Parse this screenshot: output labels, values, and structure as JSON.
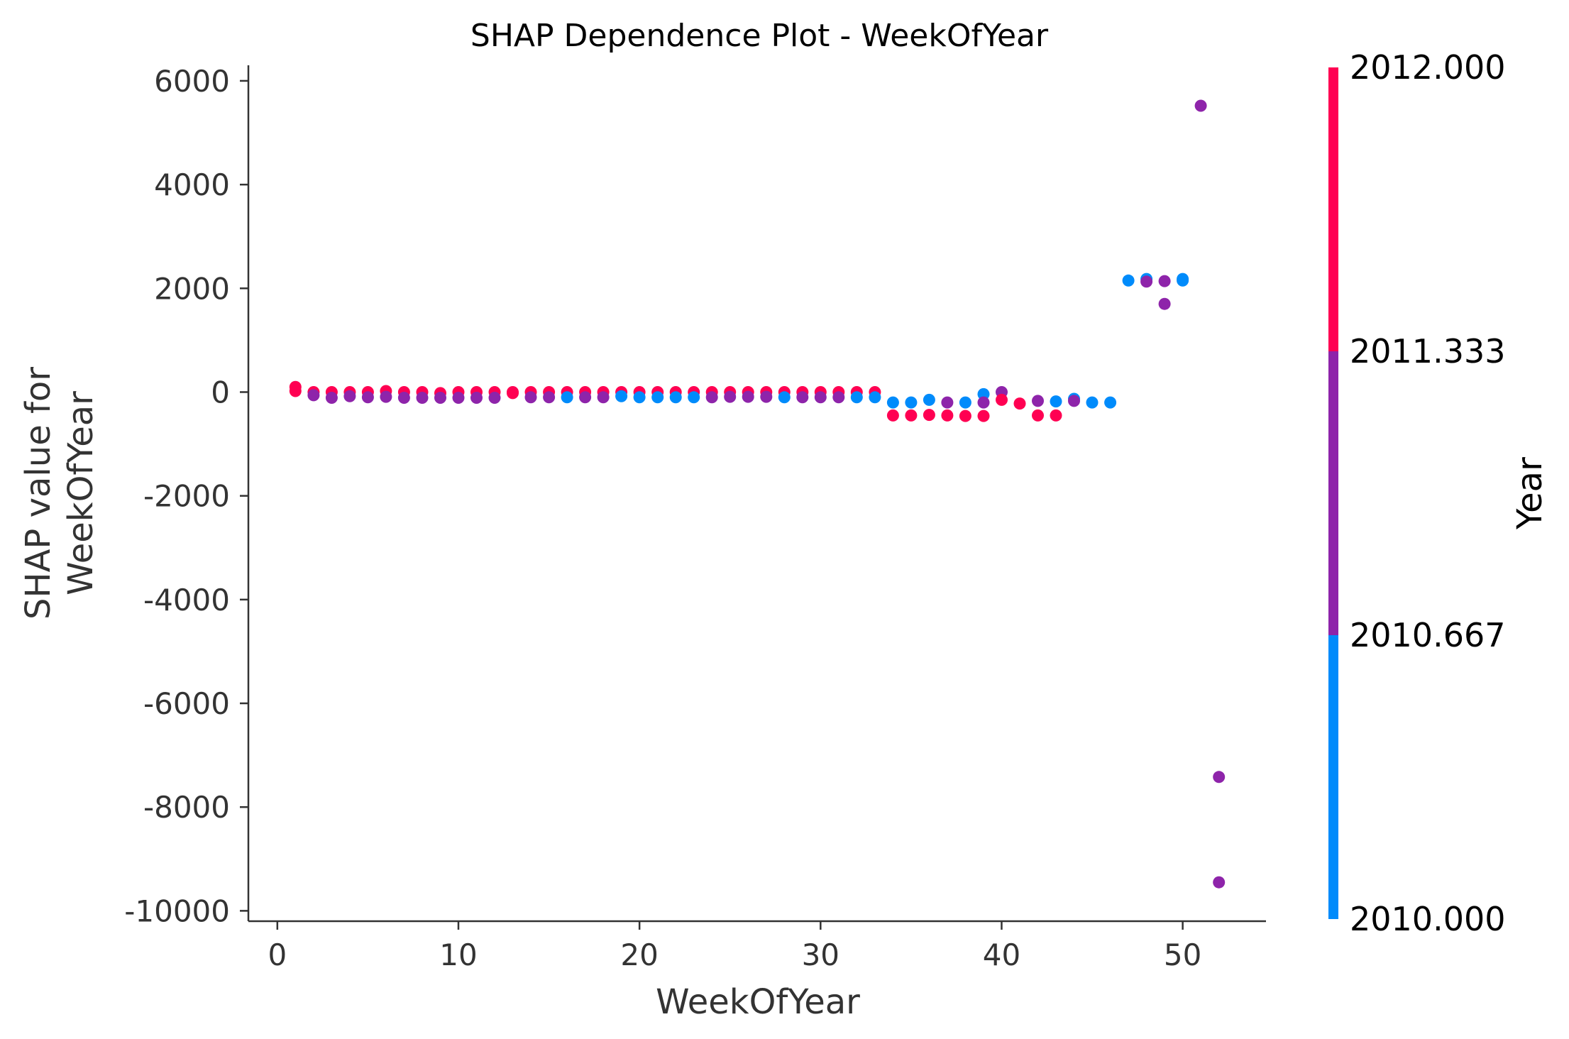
{
  "chart_data": {
    "type": "scatter",
    "title": "SHAP Dependence Plot - WeekOfYear",
    "xlabel": "WeekOfYear",
    "ylabel_lines": [
      "SHAP value for",
      "WeekOfYear"
    ],
    "xlim": [
      -1.6,
      54.6
    ],
    "ylim": [
      -10200,
      6300
    ],
    "xticks": [
      0,
      10,
      20,
      30,
      40,
      50
    ],
    "xtick_labels": [
      "0",
      "10",
      "20",
      "30",
      "40",
      "50"
    ],
    "yticks": [
      6000,
      4000,
      2000,
      0,
      -2000,
      -4000,
      -6000,
      -8000,
      -10000
    ],
    "ytick_labels": [
      "6000",
      "4000",
      "2000",
      "0",
      "-2000",
      "-4000",
      "-6000",
      "-8000",
      "-10000"
    ],
    "grid": false,
    "colorbar": {
      "title": "Year",
      "range": [
        2010,
        2012
      ],
      "ticks": [
        2012.0,
        2011.333,
        2010.667,
        2010.0
      ],
      "tick_labels": [
        "2012.000",
        "2011.333",
        "2010.667",
        "2010.000"
      ],
      "colors": [
        "#008bfb",
        "#8e24aa",
        "#ff0052"
      ]
    },
    "points": [
      {
        "x": 1,
        "y": 100,
        "c": 2012
      },
      {
        "x": 1,
        "y": 20,
        "c": 2012
      },
      {
        "x": 2,
        "y": 0,
        "c": 2012
      },
      {
        "x": 2,
        "y": -60,
        "c": 2011
      },
      {
        "x": 3,
        "y": 0,
        "c": 2012
      },
      {
        "x": 3,
        "y": -110,
        "c": 2011
      },
      {
        "x": 4,
        "y": 0,
        "c": 2012
      },
      {
        "x": 4,
        "y": -80,
        "c": 2011
      },
      {
        "x": 5,
        "y": 0,
        "c": 2012
      },
      {
        "x": 5,
        "y": -100,
        "c": 2011
      },
      {
        "x": 6,
        "y": 20,
        "c": 2012
      },
      {
        "x": 6,
        "y": -90,
        "c": 2011
      },
      {
        "x": 7,
        "y": 0,
        "c": 2012
      },
      {
        "x": 7,
        "y": -110,
        "c": 2011
      },
      {
        "x": 8,
        "y": 0,
        "c": 2012
      },
      {
        "x": 8,
        "y": -110,
        "c": 2011
      },
      {
        "x": 9,
        "y": -20,
        "c": 2012
      },
      {
        "x": 9,
        "y": -110,
        "c": 2011
      },
      {
        "x": 10,
        "y": 0,
        "c": 2012
      },
      {
        "x": 10,
        "y": -110,
        "c": 2011
      },
      {
        "x": 11,
        "y": 0,
        "c": 2012
      },
      {
        "x": 11,
        "y": -110,
        "c": 2011
      },
      {
        "x": 12,
        "y": 0,
        "c": 2012
      },
      {
        "x": 12,
        "y": -110,
        "c": 2011
      },
      {
        "x": 13,
        "y": 0,
        "c": 2012
      },
      {
        "x": 13,
        "y": -20,
        "c": 2012
      },
      {
        "x": 14,
        "y": 0,
        "c": 2012
      },
      {
        "x": 14,
        "y": -100,
        "c": 2011
      },
      {
        "x": 15,
        "y": 0,
        "c": 2012
      },
      {
        "x": 15,
        "y": -100,
        "c": 2011
      },
      {
        "x": 16,
        "y": 0,
        "c": 2012
      },
      {
        "x": 16,
        "y": -100,
        "c": 2010
      },
      {
        "x": 17,
        "y": 0,
        "c": 2012
      },
      {
        "x": 17,
        "y": -100,
        "c": 2011
      },
      {
        "x": 18,
        "y": 0,
        "c": 2012
      },
      {
        "x": 18,
        "y": -100,
        "c": 2011
      },
      {
        "x": 19,
        "y": 0,
        "c": 2012
      },
      {
        "x": 19,
        "y": -80,
        "c": 2010
      },
      {
        "x": 20,
        "y": 0,
        "c": 2012
      },
      {
        "x": 20,
        "y": -100,
        "c": 2010
      },
      {
        "x": 21,
        "y": 0,
        "c": 2012
      },
      {
        "x": 21,
        "y": -100,
        "c": 2010
      },
      {
        "x": 22,
        "y": 0,
        "c": 2012
      },
      {
        "x": 22,
        "y": -100,
        "c": 2010
      },
      {
        "x": 23,
        "y": 0,
        "c": 2012
      },
      {
        "x": 23,
        "y": -100,
        "c": 2010
      },
      {
        "x": 24,
        "y": 0,
        "c": 2012
      },
      {
        "x": 24,
        "y": -100,
        "c": 2011
      },
      {
        "x": 25,
        "y": 0,
        "c": 2012
      },
      {
        "x": 25,
        "y": -90,
        "c": 2011
      },
      {
        "x": 26,
        "y": 0,
        "c": 2012
      },
      {
        "x": 26,
        "y": -90,
        "c": 2011
      },
      {
        "x": 27,
        "y": 0,
        "c": 2012
      },
      {
        "x": 27,
        "y": -90,
        "c": 2011
      },
      {
        "x": 28,
        "y": 0,
        "c": 2012
      },
      {
        "x": 28,
        "y": -100,
        "c": 2010
      },
      {
        "x": 29,
        "y": 0,
        "c": 2012
      },
      {
        "x": 29,
        "y": -100,
        "c": 2011
      },
      {
        "x": 30,
        "y": 0,
        "c": 2012
      },
      {
        "x": 30,
        "y": -100,
        "c": 2011
      },
      {
        "x": 31,
        "y": 0,
        "c": 2012
      },
      {
        "x": 31,
        "y": -100,
        "c": 2011
      },
      {
        "x": 32,
        "y": 0,
        "c": 2012
      },
      {
        "x": 32,
        "y": -100,
        "c": 2010
      },
      {
        "x": 33,
        "y": 0,
        "c": 2012
      },
      {
        "x": 33,
        "y": -100,
        "c": 2010
      },
      {
        "x": 34,
        "y": -200,
        "c": 2010
      },
      {
        "x": 34,
        "y": -450,
        "c": 2012
      },
      {
        "x": 35,
        "y": -200,
        "c": 2010
      },
      {
        "x": 35,
        "y": -450,
        "c": 2012
      },
      {
        "x": 36,
        "y": -150,
        "c": 2010
      },
      {
        "x": 36,
        "y": -440,
        "c": 2012
      },
      {
        "x": 37,
        "y": -200,
        "c": 2011
      },
      {
        "x": 37,
        "y": -450,
        "c": 2012
      },
      {
        "x": 38,
        "y": -200,
        "c": 2010
      },
      {
        "x": 38,
        "y": -460,
        "c": 2012
      },
      {
        "x": 39,
        "y": -40,
        "c": 2010
      },
      {
        "x": 39,
        "y": -200,
        "c": 2011
      },
      {
        "x": 39,
        "y": -460,
        "c": 2012
      },
      {
        "x": 40,
        "y": 0,
        "c": 2011
      },
      {
        "x": 40,
        "y": -150,
        "c": 2012
      },
      {
        "x": 41,
        "y": -220,
        "c": 2012
      },
      {
        "x": 42,
        "y": -170,
        "c": 2011
      },
      {
        "x": 42,
        "y": -450,
        "c": 2012
      },
      {
        "x": 43,
        "y": -180,
        "c": 2010
      },
      {
        "x": 43,
        "y": -450,
        "c": 2012
      },
      {
        "x": 44,
        "y": -130,
        "c": 2010
      },
      {
        "x": 44,
        "y": -170,
        "c": 2011
      },
      {
        "x": 45,
        "y": -200,
        "c": 2010
      },
      {
        "x": 46,
        "y": -200,
        "c": 2010
      },
      {
        "x": 47,
        "y": 2150,
        "c": 2010
      },
      {
        "x": 48,
        "y": 2180,
        "c": 2010
      },
      {
        "x": 48,
        "y": 2130,
        "c": 2011
      },
      {
        "x": 49,
        "y": 2140,
        "c": 2011
      },
      {
        "x": 49,
        "y": 1700,
        "c": 2011
      },
      {
        "x": 50,
        "y": 2180,
        "c": 2010
      },
      {
        "x": 50,
        "y": 2150,
        "c": 2010
      },
      {
        "x": 51,
        "y": 5520,
        "c": 2011
      },
      {
        "x": 52,
        "y": -7420,
        "c": 2011
      },
      {
        "x": 52,
        "y": -9450,
        "c": 2011
      }
    ]
  }
}
